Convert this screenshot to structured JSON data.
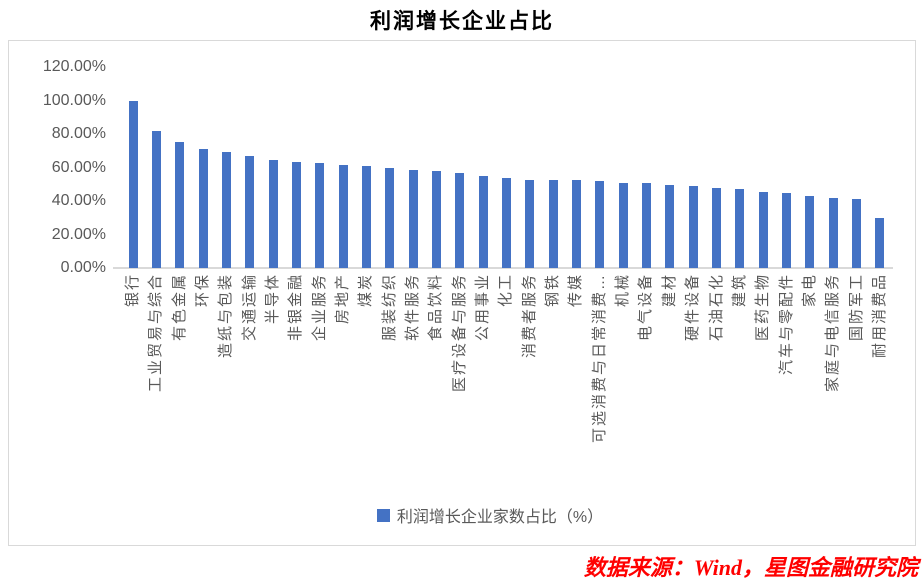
{
  "title": "利润增长企业占比",
  "source_note": "数据来源：Wind，星图金融研究院",
  "legend": {
    "label": "利润增长企业家数占比（%）"
  },
  "colors": {
    "bar": "#4472C4",
    "axis_text": "#595959",
    "title_text": "#000000",
    "source_text": "#FF0000",
    "chart_border": "#D9D9D9",
    "axis_line": "#D9D9D9"
  },
  "chart_data": {
    "type": "bar",
    "title": "利润增长企业占比",
    "series_name": "利润增长企业家数占比（%）",
    "unit": "%",
    "categories": [
      "银行",
      "工业贸易与综合",
      "有色金属",
      "环保",
      "造纸与包装",
      "交通运输",
      "半导体",
      "非银金融",
      "企业服务",
      "房地产",
      "煤炭",
      "服装纺织",
      "软件服务",
      "食品饮料",
      "医疗设备与服务",
      "公用事业",
      "化工",
      "消费者服务",
      "钢铁",
      "传媒",
      "可选消费与日常消费…",
      "机械",
      "电气设备",
      "建材",
      "硬件设备",
      "石油石化",
      "建筑",
      "医药生物",
      "汽车与零配件",
      "家电",
      "家庭与电信服务",
      "国防军工",
      "耐用消费品"
    ],
    "values": [
      100,
      82,
      75,
      71,
      69,
      67,
      64.5,
      63.5,
      62.5,
      61.5,
      61,
      60,
      58.5,
      58,
      57,
      55,
      54,
      52.5,
      52.5,
      52.5,
      52,
      50.5,
      50.5,
      49.5,
      49,
      47.5,
      47,
      45.5,
      44.5,
      43,
      42,
      41,
      30
    ],
    "ylim": [
      0,
      120
    ],
    "y_ticks": [
      {
        "label": "120.00%",
        "value": 120
      },
      {
        "label": "100.00%",
        "value": 100
      },
      {
        "label": "80.00%",
        "value": 80
      },
      {
        "label": "60.00%",
        "value": 60
      },
      {
        "label": "40.00%",
        "value": 40
      },
      {
        "label": "20.00%",
        "value": 20
      },
      {
        "label": "0.00%",
        "value": 0
      }
    ],
    "grid": false,
    "legend_position": "bottom",
    "x_label_rotation_deg": -90
  }
}
